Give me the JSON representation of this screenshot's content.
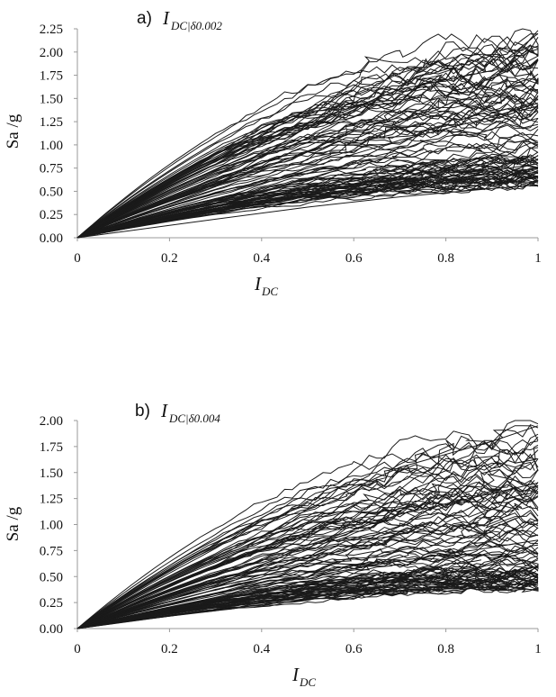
{
  "chart_data": [
    {
      "type": "line",
      "panel_letter": "a)",
      "title_main": "I",
      "title_sub": "DC|δ0.002",
      "xlabel_main": "I",
      "xlabel_sub": "DC",
      "ylabel": "Sa /g",
      "xlim": [
        0,
        1
      ],
      "ylim": [
        0,
        2.25
      ],
      "x_ticks": [
        0,
        0.2,
        0.4,
        0.6,
        0.8,
        1
      ],
      "x_tick_labels": [
        "0",
        "0.2",
        "0.4",
        "0.6",
        "0.8",
        "1"
      ],
      "y_ticks": [
        0,
        0.25,
        0.5,
        0.75,
        1.0,
        1.25,
        1.5,
        1.75,
        2.0,
        2.25
      ],
      "y_tick_labels": [
        "0.00",
        "0.25",
        "0.50",
        "0.75",
        "1.00",
        "1.25",
        "1.50",
        "1.75",
        "2.00",
        "2.25"
      ],
      "grid": false,
      "series_count": 100,
      "series_seed": 7,
      "end_value_range": [
        0.57,
        2.2
      ],
      "representative_series": [
        {
          "x": [
            0,
            0.3,
            0.5,
            0.7,
            0.9,
            1.0
          ],
          "y": [
            0,
            0.55,
            1.2,
            1.6,
            1.8,
            2.2
          ]
        },
        {
          "x": [
            0,
            0.3,
            0.5,
            0.7,
            0.9,
            1.0
          ],
          "y": [
            0,
            0.4,
            0.75,
            1.05,
            1.3,
            1.45
          ]
        },
        {
          "x": [
            0,
            0.3,
            0.5,
            0.7,
            0.9,
            1.0
          ],
          "y": [
            0,
            0.28,
            0.45,
            0.6,
            0.72,
            0.8
          ]
        },
        {
          "x": [
            0,
            0.3,
            0.5,
            0.7,
            0.9,
            1.0
          ],
          "y": [
            0,
            0.2,
            0.33,
            0.44,
            0.53,
            0.57
          ]
        }
      ]
    },
    {
      "type": "line",
      "panel_letter": "b)",
      "title_main": "I",
      "title_sub": "DC|δ0.004",
      "xlabel_main": "I",
      "xlabel_sub": "DC",
      "ylabel": "Sa /g",
      "xlim": [
        0,
        1
      ],
      "ylim": [
        0,
        2.0
      ],
      "x_ticks": [
        0,
        0.2,
        0.4,
        0.6,
        0.8,
        1
      ],
      "x_tick_labels": [
        "0",
        "0.2",
        "0.4",
        "0.6",
        "0.8",
        "1"
      ],
      "y_ticks": [
        0,
        0.25,
        0.5,
        0.75,
        1.0,
        1.25,
        1.5,
        1.75,
        2.0
      ],
      "y_tick_labels": [
        "0.00",
        "0.25",
        "0.50",
        "0.75",
        "1.00",
        "1.25",
        "1.50",
        "1.75",
        "2.00"
      ],
      "grid": false,
      "series_count": 100,
      "series_seed": 13,
      "end_value_range": [
        0.4,
        1.95
      ],
      "representative_series": [
        {
          "x": [
            0,
            0.3,
            0.5,
            0.7,
            0.9,
            1.0
          ],
          "y": [
            0,
            0.6,
            1.15,
            1.55,
            1.8,
            1.95
          ]
        },
        {
          "x": [
            0,
            0.3,
            0.5,
            0.7,
            0.9,
            1.0
          ],
          "y": [
            0,
            0.42,
            0.8,
            1.1,
            1.3,
            1.4
          ]
        },
        {
          "x": [
            0,
            0.3,
            0.5,
            0.7,
            0.9,
            1.0
          ],
          "y": [
            0,
            0.3,
            0.5,
            0.65,
            0.78,
            0.85
          ]
        },
        {
          "x": [
            0,
            0.3,
            0.5,
            0.7,
            0.9,
            1.0
          ],
          "y": [
            0,
            0.18,
            0.28,
            0.36,
            0.4,
            0.45
          ]
        }
      ]
    }
  ]
}
